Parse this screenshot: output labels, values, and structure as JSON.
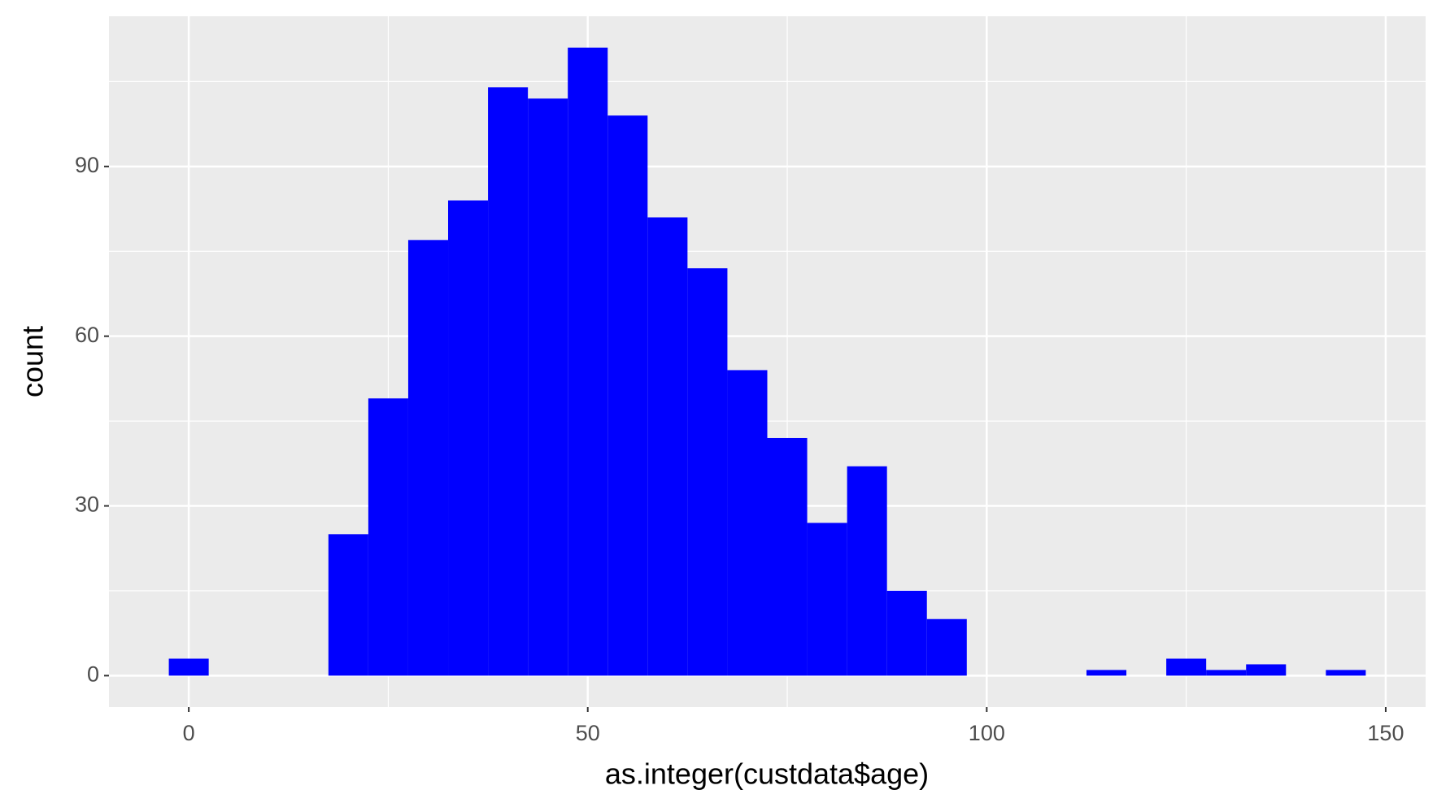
{
  "chart_data": {
    "type": "histogram",
    "x_label": "as.integer(custdata$age)",
    "y_label": "count",
    "bins": [
      -2.5,
      2.5,
      7.5,
      12.5,
      17.5,
      22.5,
      27.5,
      32.5,
      37.5,
      42.5,
      47.5,
      52.5,
      57.5,
      62.5,
      67.5,
      72.5,
      77.5,
      82.5,
      87.5,
      92.5,
      97.5,
      102.5,
      107.5,
      112.5,
      117.5,
      122.5,
      127.5,
      132.5,
      137.5,
      142.5,
      147.5
    ],
    "values": [
      3,
      0,
      0,
      0,
      25,
      49,
      77,
      84,
      104,
      102,
      111,
      99,
      81,
      72,
      54,
      42,
      27,
      37,
      15,
      10,
      0,
      0,
      0,
      1,
      0,
      3,
      1,
      2,
      0,
      1
    ],
    "color": "#0000ff",
    "xlim": [
      -10,
      155
    ],
    "ylim": [
      -5.55,
      116.55
    ],
    "xticks": [
      0,
      50,
      100,
      150
    ],
    "yticks": [
      0,
      30,
      60,
      90
    ],
    "grid": true
  }
}
